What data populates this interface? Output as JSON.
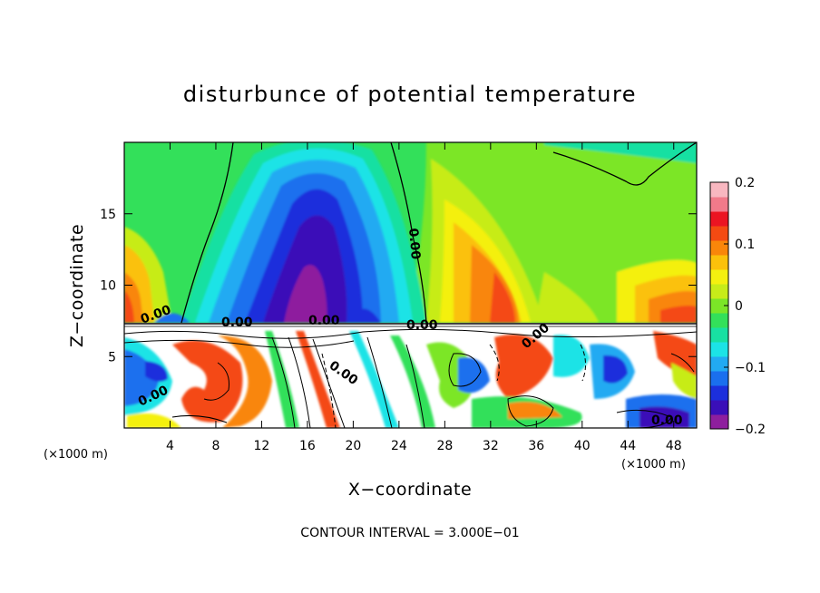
{
  "chart_data": {
    "type": "heatmap",
    "title": "disturbunce of potential temperature",
    "xlabel": "X−coordinate",
    "ylabel": "Z−coordinate",
    "x_unit_label_left": "(×1000 m)",
    "x_unit_label_right": "(×1000 m)",
    "xlim": [
      0,
      50
    ],
    "ylim": [
      0,
      20
    ],
    "xticks": [
      4,
      8,
      12,
      16,
      20,
      24,
      28,
      32,
      36,
      40,
      44,
      48
    ],
    "yticks": [
      5,
      10,
      15
    ],
    "colorbar": {
      "range": [
        -0.2,
        0.2
      ],
      "ticks": [
        0.2,
        0.1,
        0,
        -0.1,
        -0.2
      ],
      "tick_labels": [
        "0.2",
        "0.1",
        "0",
        "−0.1",
        "−0.2"
      ],
      "colors": [
        "#8e1f9e",
        "#3a0fb8",
        "#1c2fdc",
        "#1a6fee",
        "#22aaf2",
        "#1ce3e6",
        "#18e0a2",
        "#33e05a",
        "#7be627",
        "#c7ec19",
        "#f4f00f",
        "#fbc10b",
        "#f9860a",
        "#f44a12",
        "#eb1422",
        "#f17a8a",
        "#f8b7c0"
      ]
    },
    "contour_interval_note": "CONTOUR INTERVAL = 3.000E−01",
    "contour_labels": [
      "0.00",
      "0.00",
      "0.00",
      "0.00",
      "0.00",
      "0.00",
      "0.00",
      "0.00",
      "0.00"
    ],
    "grid": false
  }
}
